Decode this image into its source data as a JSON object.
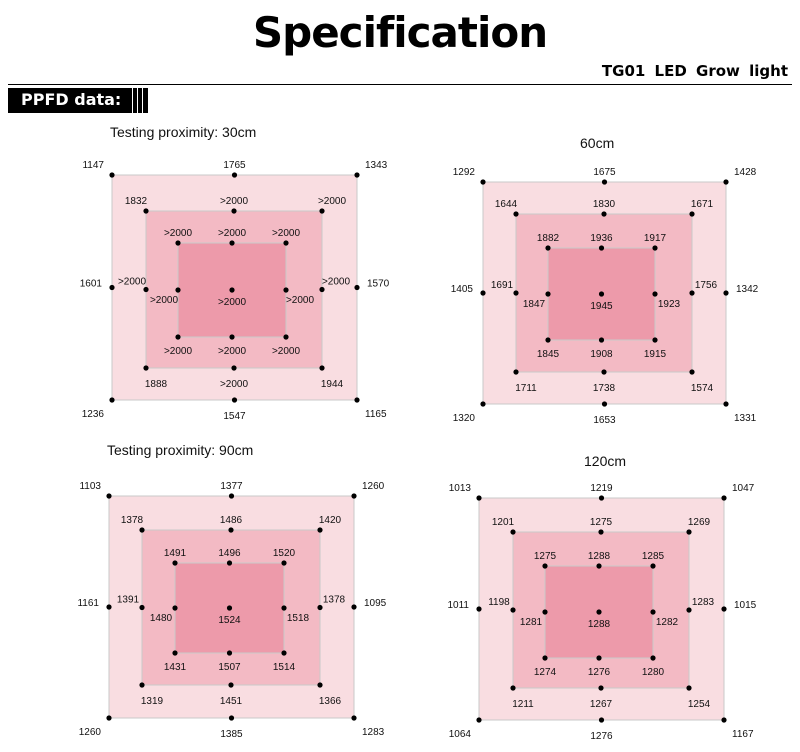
{
  "header": {
    "title": "Specification",
    "product": "TG01  LED  Grow  light",
    "section_tag": "PPFD data:"
  },
  "colors": {
    "outer_fill": "#f9dde1",
    "middle_fill": "#f3bac4",
    "inner_fill": "#ed9aaa",
    "border": "#c9c9c9",
    "dot": "#000000"
  },
  "diagrams": [
    {
      "label": "Testing proximity:   30cm",
      "outer": {
        "tl": "1147",
        "top": "1765",
        "tr": "1343",
        "left": "1601",
        "right": "1570",
        "bl": "1236",
        "bottom": "1547",
        "br": "1165"
      },
      "middle": {
        "tl": "1832",
        "top": ">2000",
        "tr": ">2000",
        "left": ">2000",
        "right": ">2000",
        "bl": "1888",
        "bottom": ">2000",
        "br": "1944"
      },
      "inner": {
        "tl": ">2000",
        "top": ">2000",
        "tr": ">2000",
        "left": ">2000",
        "right": ">2000",
        "bl": ">2000",
        "bottom": ">2000",
        "br": ">2000",
        "center": ">2000"
      }
    },
    {
      "label": "60cm",
      "outer": {
        "tl": "1292",
        "top": "1675",
        "tr": "1428",
        "left": "1405",
        "right": "1342",
        "bl": "1320",
        "bottom": "1653",
        "br": "1331"
      },
      "middle": {
        "tl": "1644",
        "top": "1830",
        "tr": "1671",
        "left": "1691",
        "right": "1756",
        "bl": "1711",
        "bottom": "1738",
        "br": "1574"
      },
      "inner": {
        "tl": "1882",
        "top": "1936",
        "tr": "1917",
        "left": "1847",
        "right": "1923",
        "bl": "1845",
        "bottom": "1908",
        "br": "1915",
        "center": "1945"
      }
    },
    {
      "label": "Testing proximity:   90cm",
      "outer": {
        "tl": "1103",
        "top": "1377",
        "tr": "1260",
        "left": "1161",
        "right": "1095",
        "bl": "1260",
        "bottom": "1385",
        "br": "1283"
      },
      "middle": {
        "tl": "1378",
        "top": "1486",
        "tr": "1420",
        "left": "1391",
        "right": "1378",
        "bl": "1319",
        "bottom": "1451",
        "br": "1366"
      },
      "inner": {
        "tl": "1491",
        "top": "1496",
        "tr": "1520",
        "left": "1480",
        "right": "1518",
        "bl": "1431",
        "bottom": "1507",
        "br": "1514",
        "center": "1524"
      }
    },
    {
      "label": "120cm",
      "outer": {
        "tl": "1013",
        "top": "1219",
        "tr": "1047",
        "left": "1011",
        "right": "1015",
        "bl": "1064",
        "bottom": "1276",
        "br": "1167"
      },
      "middle": {
        "tl": "1201",
        "top": "1275",
        "tr": "1269",
        "left": "1198",
        "right": "1283",
        "bl": "1211",
        "bottom": "1267",
        "br": "1254"
      },
      "inner": {
        "tl": "1275",
        "top": "1288",
        "tr": "1285",
        "left": "1281",
        "right": "1282",
        "bl": "1274",
        "bottom": "1276",
        "br": "1280",
        "center": "1288"
      }
    }
  ]
}
